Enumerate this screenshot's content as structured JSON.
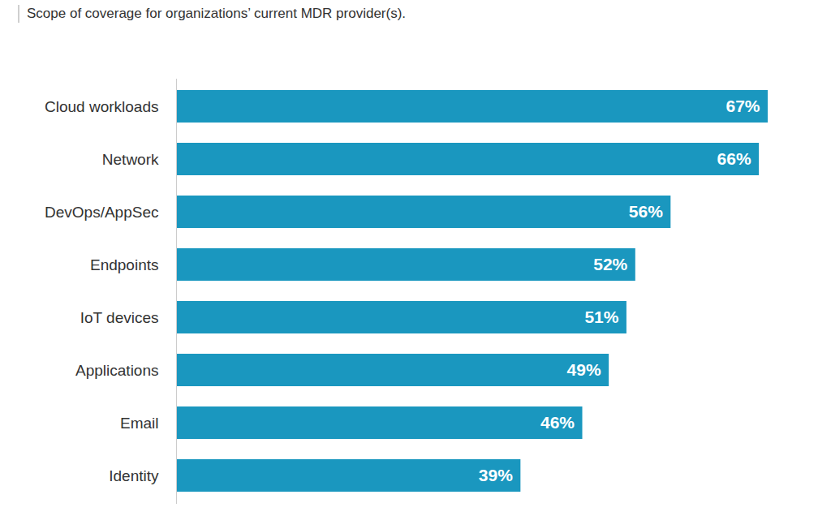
{
  "chart_data": {
    "type": "bar",
    "title": "Scope of coverage for organizations’ current MDR provider(s).",
    "orientation": "horizontal",
    "categories": [
      "Cloud workloads",
      "Network",
      "DevOps/AppSec",
      "Endpoints",
      "IoT devices",
      "Applications",
      "Email",
      "Identity"
    ],
    "values": [
      67,
      66,
      56,
      52,
      51,
      49,
      46,
      39
    ],
    "value_labels": [
      "67%",
      "66%",
      "56%",
      "52%",
      "51%",
      "49%",
      "46%",
      "39%"
    ],
    "color": "#1a97bf",
    "xlim": [
      0,
      67
    ],
    "data_labels": true,
    "tick_labels": "y",
    "grid": false
  }
}
